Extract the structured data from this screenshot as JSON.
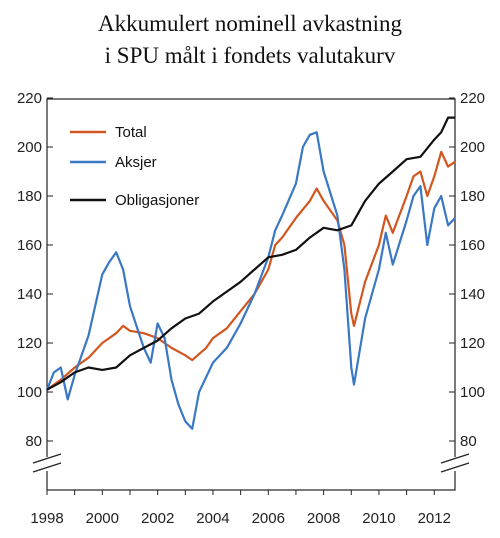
{
  "chart_data": {
    "type": "line",
    "title_lines": [
      "Akkumulert nominell avkastning",
      "i SPU målt i fondets valutakurv"
    ],
    "xlabel": "",
    "ylabel": "",
    "x_tick_labels": [
      "1998",
      "2000",
      "2002",
      "2004",
      "2006",
      "2008",
      "2010",
      "2012"
    ],
    "x_ticks": [
      1998,
      2000,
      2002,
      2004,
      2006,
      2008,
      2010,
      2012
    ],
    "xlim": [
      1998.0,
      2012.75
    ],
    "y_tick_labels": [
      "80",
      "100",
      "120",
      "140",
      "160",
      "180",
      "200",
      "220"
    ],
    "y_ticks": [
      80,
      100,
      120,
      140,
      160,
      180,
      200,
      220
    ],
    "ylim": [
      70,
      220
    ],
    "axis_break": true,
    "grid": false,
    "legend_position": "top-left",
    "series": [
      {
        "name": "Total",
        "color": "#d2561f",
        "points": [
          [
            1998.0,
            101
          ],
          [
            1998.5,
            105
          ],
          [
            1999.0,
            110
          ],
          [
            1999.5,
            114
          ],
          [
            2000.0,
            120
          ],
          [
            2000.5,
            124
          ],
          [
            2000.75,
            127
          ],
          [
            2001.0,
            125
          ],
          [
            2001.5,
            124
          ],
          [
            2002.0,
            122
          ],
          [
            2002.5,
            118
          ],
          [
            2003.0,
            115
          ],
          [
            2003.25,
            113
          ],
          [
            2003.75,
            118
          ],
          [
            2004.0,
            122
          ],
          [
            2004.5,
            126
          ],
          [
            2005.0,
            133
          ],
          [
            2005.5,
            140
          ],
          [
            2006.0,
            150
          ],
          [
            2006.25,
            160
          ],
          [
            2006.5,
            163
          ],
          [
            2007.0,
            171
          ],
          [
            2007.5,
            178
          ],
          [
            2007.75,
            183
          ],
          [
            2008.0,
            178
          ],
          [
            2008.5,
            170
          ],
          [
            2008.75,
            160
          ],
          [
            2009.0,
            132
          ],
          [
            2009.1,
            127
          ],
          [
            2009.5,
            145
          ],
          [
            2010.0,
            160
          ],
          [
            2010.25,
            172
          ],
          [
            2010.5,
            165
          ],
          [
            2011.0,
            180
          ],
          [
            2011.25,
            188
          ],
          [
            2011.5,
            190
          ],
          [
            2011.75,
            180
          ],
          [
            2012.0,
            188
          ],
          [
            2012.25,
            198
          ],
          [
            2012.5,
            192
          ],
          [
            2012.75,
            194
          ]
        ]
      },
      {
        "name": "Aksjer",
        "color": "#3a78c4",
        "points": [
          [
            1998.0,
            101
          ],
          [
            1998.25,
            108
          ],
          [
            1998.5,
            110
          ],
          [
            1998.75,
            97
          ],
          [
            1999.0,
            107
          ],
          [
            1999.5,
            123
          ],
          [
            2000.0,
            148
          ],
          [
            2000.25,
            153
          ],
          [
            2000.5,
            157
          ],
          [
            2000.75,
            150
          ],
          [
            2001.0,
            135
          ],
          [
            2001.5,
            118
          ],
          [
            2001.75,
            112
          ],
          [
            2002.0,
            128
          ],
          [
            2002.25,
            122
          ],
          [
            2002.5,
            105
          ],
          [
            2002.75,
            95
          ],
          [
            2003.0,
            88
          ],
          [
            2003.25,
            85
          ],
          [
            2003.5,
            100
          ],
          [
            2004.0,
            112
          ],
          [
            2004.5,
            118
          ],
          [
            2005.0,
            128
          ],
          [
            2005.5,
            140
          ],
          [
            2006.0,
            155
          ],
          [
            2006.25,
            166
          ],
          [
            2006.5,
            172
          ],
          [
            2007.0,
            185
          ],
          [
            2007.25,
            200
          ],
          [
            2007.5,
            205
          ],
          [
            2007.75,
            206
          ],
          [
            2008.0,
            190
          ],
          [
            2008.5,
            172
          ],
          [
            2008.75,
            150
          ],
          [
            2009.0,
            110
          ],
          [
            2009.1,
            103
          ],
          [
            2009.5,
            130
          ],
          [
            2010.0,
            150
          ],
          [
            2010.25,
            165
          ],
          [
            2010.5,
            152
          ],
          [
            2011.0,
            170
          ],
          [
            2011.25,
            180
          ],
          [
            2011.5,
            184
          ],
          [
            2011.75,
            160
          ],
          [
            2012.0,
            175
          ],
          [
            2012.25,
            180
          ],
          [
            2012.5,
            168
          ],
          [
            2012.75,
            171
          ]
        ]
      },
      {
        "name": "Obligasjoner",
        "color": "#111111",
        "points": [
          [
            1998.0,
            101
          ],
          [
            1998.5,
            104
          ],
          [
            1999.0,
            108
          ],
          [
            1999.5,
            110
          ],
          [
            2000.0,
            109
          ],
          [
            2000.5,
            110
          ],
          [
            2001.0,
            115
          ],
          [
            2001.5,
            118
          ],
          [
            2002.0,
            121
          ],
          [
            2002.5,
            126
          ],
          [
            2003.0,
            130
          ],
          [
            2003.5,
            132
          ],
          [
            2004.0,
            137
          ],
          [
            2004.5,
            141
          ],
          [
            2005.0,
            145
          ],
          [
            2005.5,
            150
          ],
          [
            2006.0,
            155
          ],
          [
            2006.5,
            156
          ],
          [
            2007.0,
            158
          ],
          [
            2007.5,
            163
          ],
          [
            2008.0,
            167
          ],
          [
            2008.5,
            166
          ],
          [
            2009.0,
            168
          ],
          [
            2009.5,
            178
          ],
          [
            2010.0,
            185
          ],
          [
            2010.5,
            190
          ],
          [
            2011.0,
            195
          ],
          [
            2011.5,
            196
          ],
          [
            2012.0,
            203
          ],
          [
            2012.25,
            206
          ],
          [
            2012.5,
            212
          ],
          [
            2012.75,
            212
          ]
        ]
      }
    ]
  }
}
